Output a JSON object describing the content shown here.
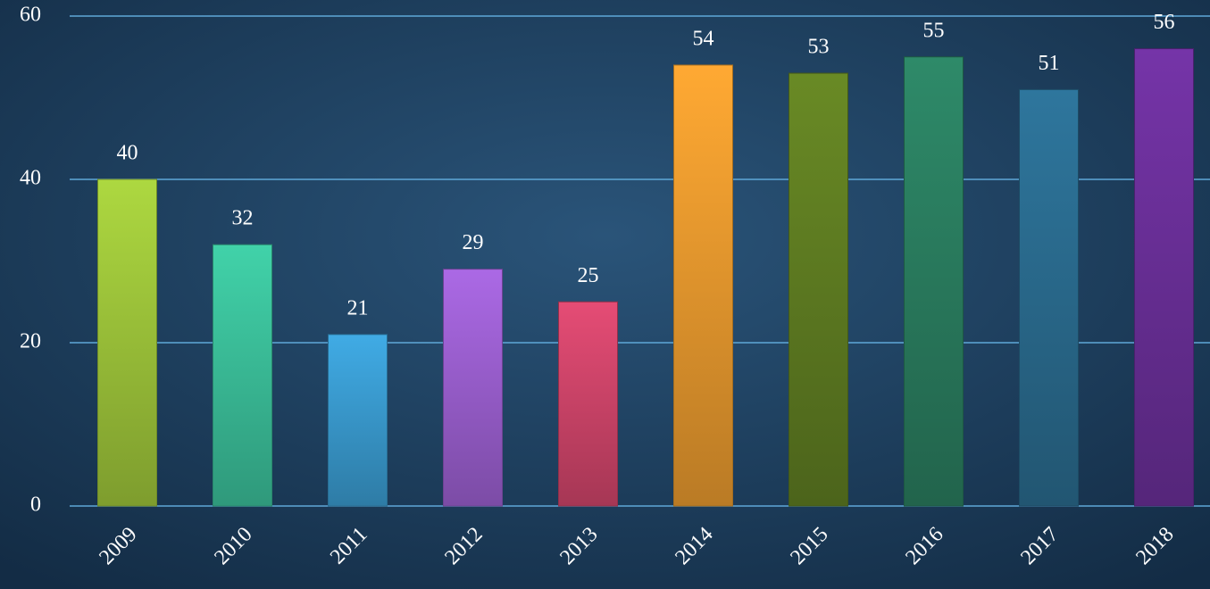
{
  "chart_data": {
    "type": "bar",
    "categories": [
      "2009",
      "2010",
      "2011",
      "2012",
      "2013",
      "2014",
      "2015",
      "2016",
      "2017",
      "2018"
    ],
    "values": [
      40,
      32,
      21,
      29,
      25,
      54,
      53,
      55,
      51,
      56
    ],
    "colors": [
      "#9dc43a",
      "#3bbf9a",
      "#3a9bd0",
      "#9b5fd0",
      "#d0456a",
      "#e89a2e",
      "#5f7d22",
      "#2a7d5f",
      "#2a6b8f",
      "#6a2f99"
    ],
    "ylim": [
      0,
      60
    ],
    "yticks": [
      0,
      20,
      40,
      60
    ],
    "grid": true
  }
}
